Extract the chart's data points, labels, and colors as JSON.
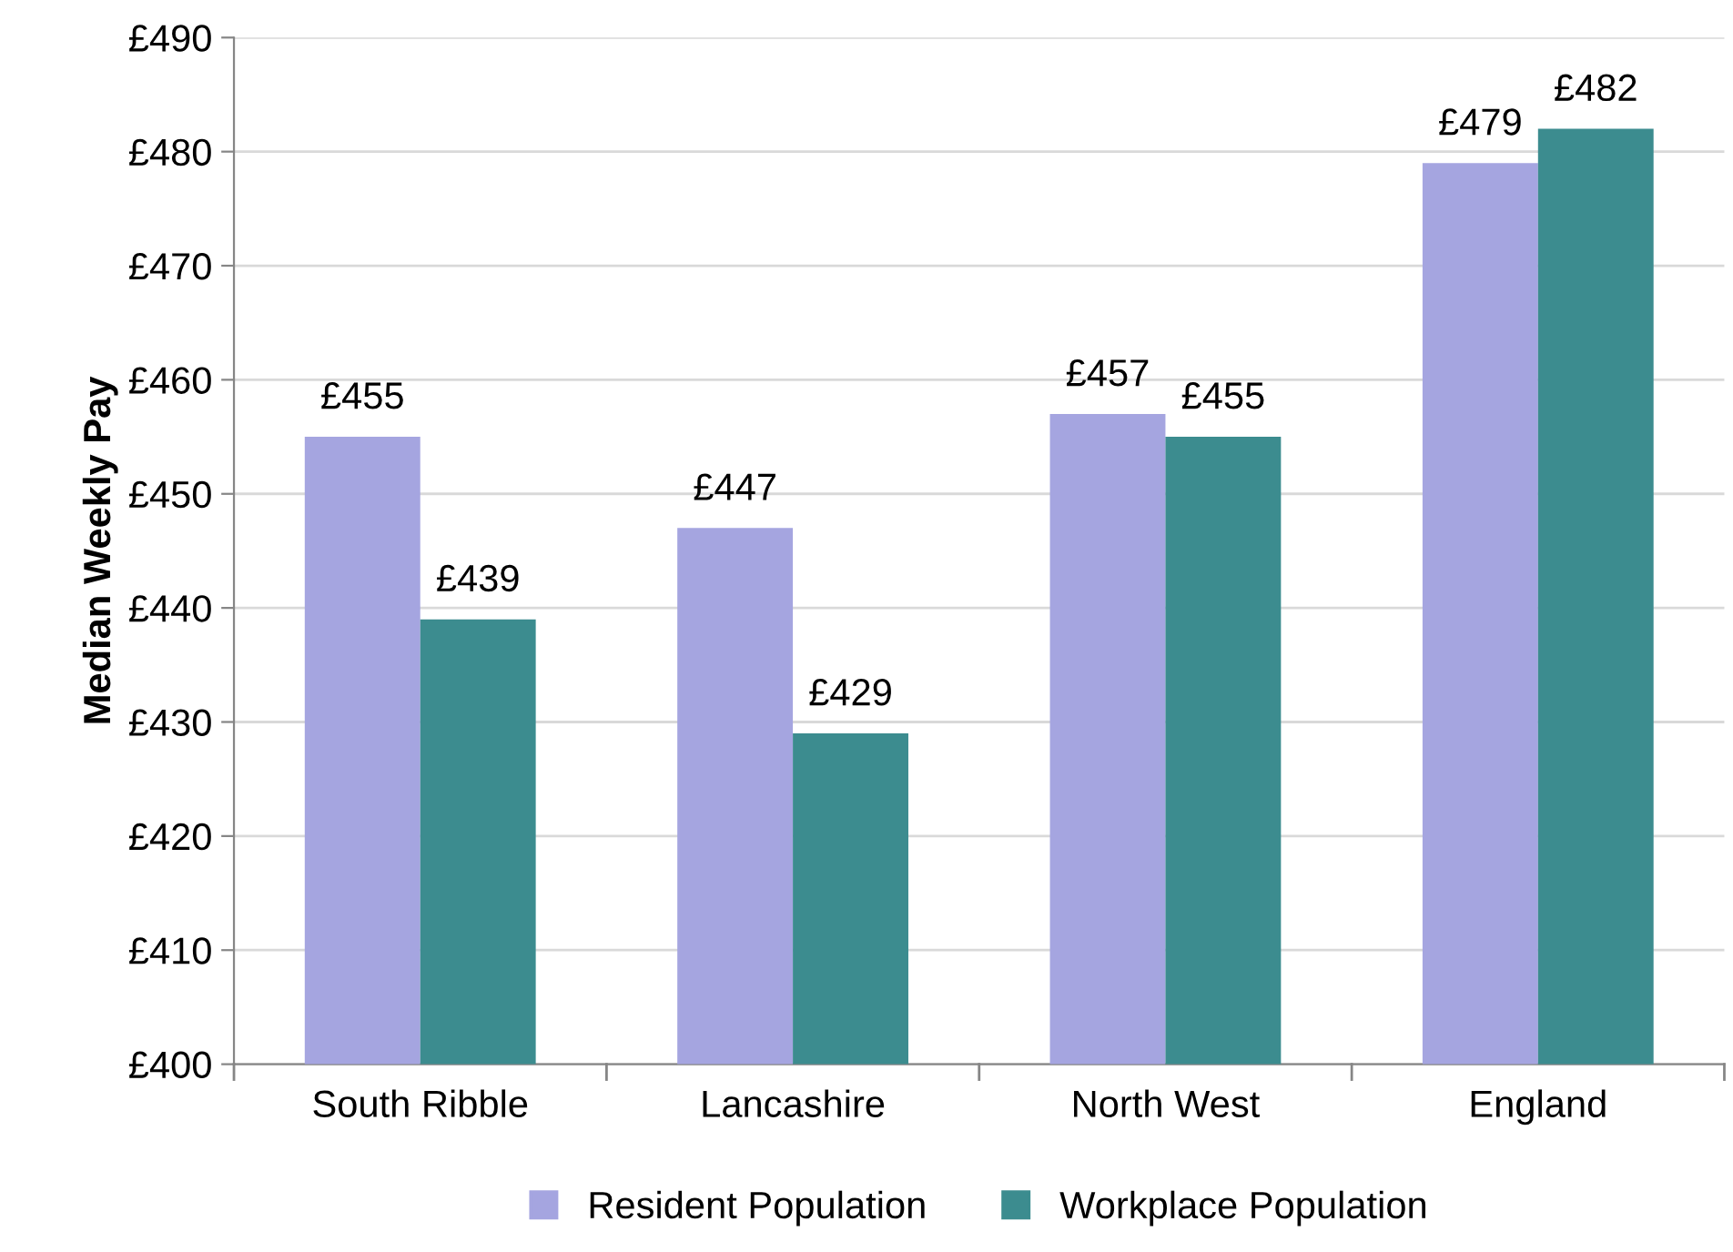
{
  "chart_data": {
    "type": "bar",
    "ylabel": "Median Weekly Pay",
    "categories": [
      "South Ribble",
      "Lancashire",
      "North West",
      "England"
    ],
    "series": [
      {
        "name": "Resident Population",
        "color": "#a5a5e0",
        "values": [
          455,
          447,
          457,
          479
        ],
        "value_labels": [
          "£455",
          "£447",
          "£457",
          "£479"
        ]
      },
      {
        "name": "Workplace Population",
        "color": "#3c8c8f",
        "values": [
          439,
          429,
          455,
          482
        ],
        "value_labels": [
          "£439",
          "£429",
          "£455",
          "£482"
        ]
      }
    ],
    "ylim": [
      400,
      490
    ],
    "yticks": [
      {
        "value": 400,
        "label": "£400"
      },
      {
        "value": 410,
        "label": "£410"
      },
      {
        "value": 420,
        "label": "£420"
      },
      {
        "value": 430,
        "label": "£430"
      },
      {
        "value": 440,
        "label": "£440"
      },
      {
        "value": 450,
        "label": "£450"
      },
      {
        "value": 460,
        "label": "£460"
      },
      {
        "value": 470,
        "label": "£470"
      },
      {
        "value": 480,
        "label": "£480"
      },
      {
        "value": 490,
        "label": "£490"
      }
    ],
    "grid": "y",
    "legend": "bottom"
  }
}
